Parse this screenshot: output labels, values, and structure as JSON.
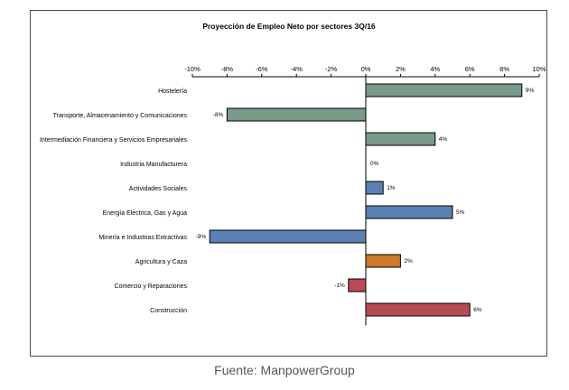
{
  "chart_data": {
    "type": "bar",
    "orientation": "horizontal",
    "title": "Proyección de Empleo Neto por sectores 3Q/16",
    "xlabel": "",
    "ylabel": "",
    "xlim": [
      -10,
      10
    ],
    "x_ticks": [
      "-10%",
      "-8%",
      "-6%",
      "-4%",
      "-2%",
      "0%",
      "2%",
      "4%",
      "6%",
      "8%",
      "10%"
    ],
    "x_tick_values": [
      -10,
      -8,
      -6,
      -4,
      -2,
      0,
      2,
      4,
      6,
      8,
      10
    ],
    "axis_position": "top",
    "grid": false,
    "categories": [
      "Hostelería",
      "Transporte, Almacenamiento y Comunicaciones",
      "Intermediación Financiera y Servicios Empresariales",
      "Industria Manufacturera",
      "Actividades Sociales",
      "Energía Eléctrica, Gas y Agua",
      "Minería e Industrias Extractivas",
      "Agricultura y Caza",
      "Comercio y Reparaciones",
      "Construcción"
    ],
    "values": [
      9,
      -8,
      4,
      0,
      1,
      5,
      -9,
      2,
      -1,
      6
    ],
    "data_labels": [
      "9%",
      "-8%",
      "4%",
      "0%",
      "1%",
      "5%",
      "-9%",
      "2%",
      "-1%",
      "6%"
    ],
    "bar_colors": [
      "#7a9a8a",
      "#7a9a8a",
      "#7a9a8a",
      "#7a9a8a",
      "#5b80b4",
      "#5b80b4",
      "#5b80b4",
      "#cc7a2c",
      "#b84a56",
      "#b84a56"
    ]
  },
  "caption": "Fuente: ManpowerGroup"
}
